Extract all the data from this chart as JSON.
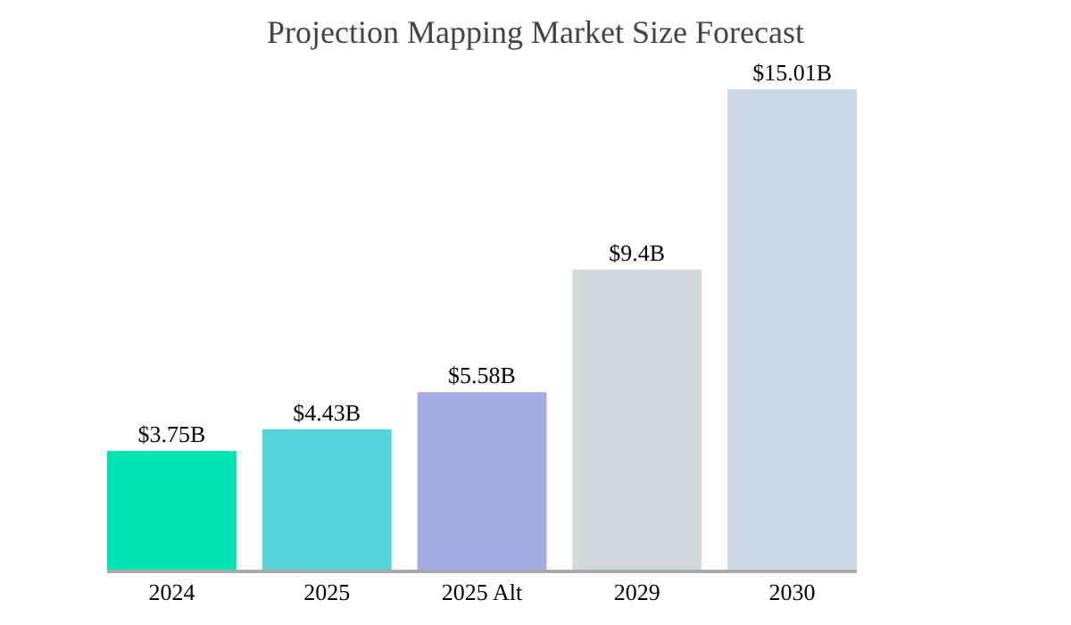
{
  "chart_data": {
    "type": "bar",
    "title": "Projection Mapping Market Size Forecast",
    "categories": [
      "2024",
      "2025",
      "2025 Alt",
      "2029",
      "2030"
    ],
    "values": [
      3.75,
      4.43,
      5.58,
      9.4,
      15.01
    ],
    "colors": [
      "#00e3b3",
      "#55d4da",
      "#a3ace0",
      "#d0d9dc",
      "#cad7e5"
    ],
    "value_labels": [
      "$3.75B",
      "$4.43B",
      "$5.58B",
      "$9.4B",
      "$15.01B"
    ],
    "relative": false
  }
}
